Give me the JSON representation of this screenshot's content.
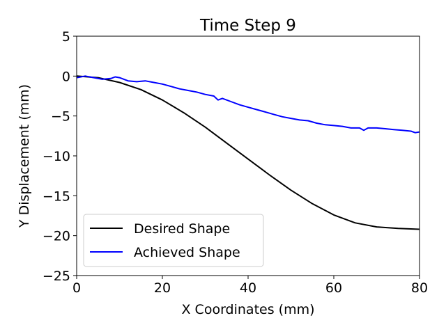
{
  "chart_data": {
    "type": "line",
    "title": "Time Step 9",
    "xlabel": "X Coordinates (mm)",
    "ylabel": "Y Displacement (mm)",
    "xlim": [
      0,
      80
    ],
    "ylim": [
      -25,
      5
    ],
    "xticks": [
      0,
      20,
      40,
      60,
      80
    ],
    "yticks": [
      5,
      0,
      -5,
      -10,
      -15,
      -20,
      -25
    ],
    "grid": false,
    "legend_position": "lower-left",
    "series": [
      {
        "name": "Desired Shape",
        "color": "#000000",
        "x": [
          0,
          5,
          10,
          15,
          20,
          25,
          30,
          35,
          40,
          45,
          50,
          55,
          60,
          65,
          70,
          75,
          80
        ],
        "y": [
          0,
          -0.2,
          -0.8,
          -1.7,
          -3.0,
          -4.6,
          -6.4,
          -8.4,
          -10.4,
          -12.4,
          -14.3,
          -16.0,
          -17.4,
          -18.4,
          -18.9,
          -19.1,
          -19.2
        ]
      },
      {
        "name": "Achieved Shape",
        "color": "#0000ff",
        "x": [
          0,
          2,
          4,
          6,
          8,
          9,
          10,
          12,
          14,
          16,
          18,
          20,
          22,
          24,
          26,
          28,
          30,
          32,
          33,
          34,
          36,
          38,
          40,
          42,
          44,
          46,
          48,
          50,
          52,
          54,
          56,
          58,
          60,
          62,
          64,
          66,
          67,
          68,
          70,
          72,
          74,
          76,
          78,
          79,
          80
        ],
        "y": [
          -0.2,
          0.0,
          -0.2,
          -0.4,
          -0.3,
          -0.1,
          -0.2,
          -0.6,
          -0.7,
          -0.6,
          -0.8,
          -1.0,
          -1.3,
          -1.6,
          -1.8,
          -2.0,
          -2.3,
          -2.5,
          -3.0,
          -2.8,
          -3.2,
          -3.6,
          -3.9,
          -4.2,
          -4.5,
          -4.8,
          -5.1,
          -5.3,
          -5.5,
          -5.6,
          -5.9,
          -6.1,
          -6.2,
          -6.3,
          -6.5,
          -6.5,
          -6.8,
          -6.5,
          -6.5,
          -6.6,
          -6.7,
          -6.8,
          -6.9,
          -7.1,
          -7.0
        ]
      }
    ]
  }
}
